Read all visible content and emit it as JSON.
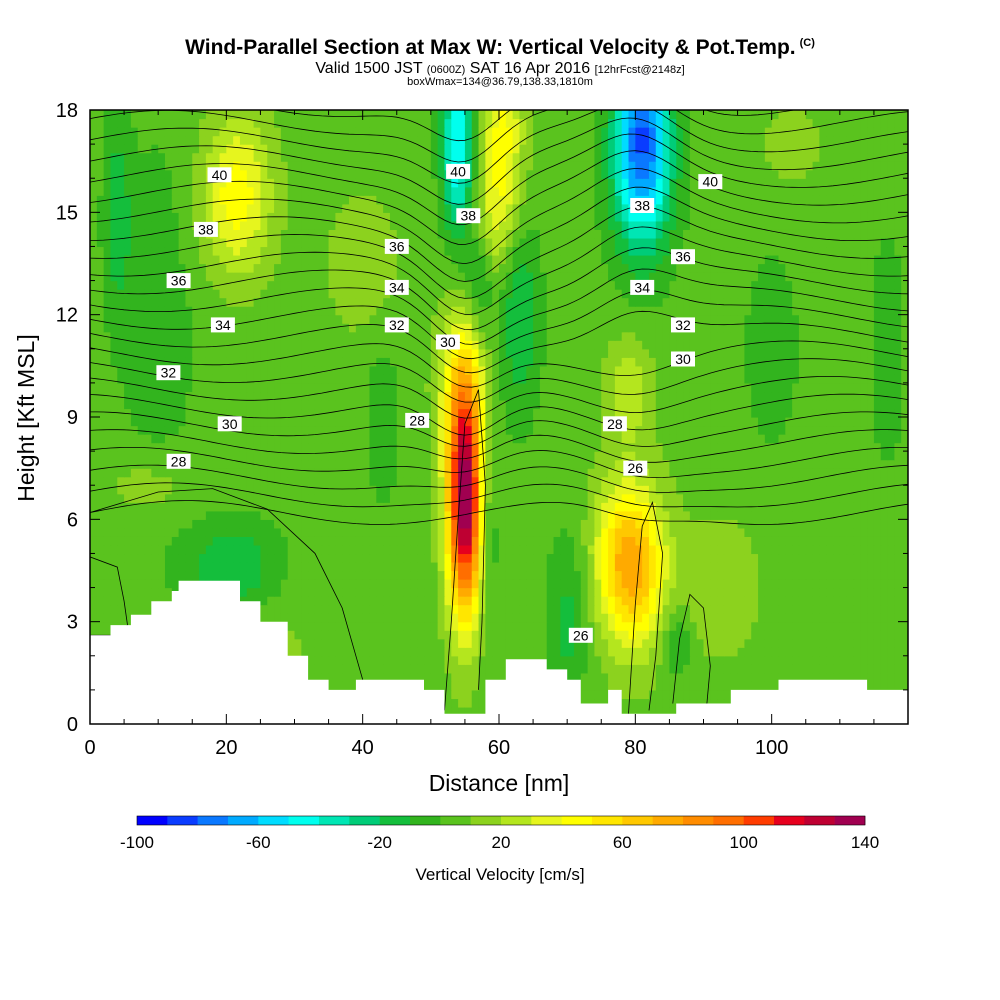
{
  "header": {
    "title": "Wind-Parallel Section at Max W: Vertical Velocity & Pot.Temp.",
    "copyright": "(C)",
    "valid_prefix": "Valid 1500 JST",
    "valid_utc": "(0600Z)",
    "valid_date": "SAT 16 Apr 2016",
    "forecast": "[12hrFcst@2148z]",
    "box_info": "boxWmax=134@36.79,138.33,1810m"
  },
  "chart_data": {
    "type": "heatmap",
    "xlabel": "Distance [nm]",
    "ylabel": "Height [Kft MSL]",
    "xlim": [
      0,
      120
    ],
    "ylim": [
      0,
      18
    ],
    "x_ticks": [
      "0",
      "20",
      "40",
      "60",
      "80",
      "100"
    ],
    "y_ticks": [
      "0",
      "3",
      "6",
      "9",
      "12",
      "15",
      "18"
    ],
    "colorbar": {
      "title": "Vertical Velocity [cm/s]",
      "range": [
        -100,
        140
      ],
      "step": 10,
      "tick_labels": [
        "-100",
        "-60",
        "-20",
        "20",
        "60",
        "100",
        "140"
      ],
      "colors": [
        "#0000ff",
        "#0a3cff",
        "#0a78ff",
        "#00aaff",
        "#00dcff",
        "#00ffee",
        "#00e6b4",
        "#00cc78",
        "#14be3c",
        "#32b41e",
        "#5ac31e",
        "#8cd21e",
        "#b4e61e",
        "#e6f51e",
        "#ffff00",
        "#ffe600",
        "#ffc800",
        "#ffaa00",
        "#ff8c00",
        "#ff6e00",
        "#ff3c00",
        "#e6001e",
        "#be0032",
        "#a00050",
        "#82006e",
        "#640096"
      ]
    },
    "vertical_velocity_features": [
      {
        "kind": "updraft",
        "x": 55,
        "y": 6.5,
        "peak": 134
      },
      {
        "kind": "updraft",
        "x": 80,
        "y": 4.5,
        "peak": 60
      },
      {
        "kind": "updraft",
        "x": 60,
        "y": 17,
        "peak": 40
      },
      {
        "kind": "updraft",
        "x": 22,
        "y": 15.5,
        "peak": 40
      },
      {
        "kind": "downdraft",
        "x": 81,
        "y": 17.5,
        "peak": -70
      },
      {
        "kind": "downdraft",
        "x": 54,
        "y": 17,
        "peak": -50
      },
      {
        "kind": "downdraft",
        "x": 20,
        "y": 4,
        "peak": -20
      }
    ],
    "theta_contour_labels": [
      {
        "label": "40",
        "x": 19,
        "y": 16.1
      },
      {
        "label": "40",
        "x": 54,
        "y": 16.2
      },
      {
        "label": "40",
        "x": 91,
        "y": 15.9
      },
      {
        "label": "38",
        "x": 17,
        "y": 14.5
      },
      {
        "label": "38",
        "x": 55.5,
        "y": 14.9
      },
      {
        "label": "38",
        "x": 81,
        "y": 15.2
      },
      {
        "label": "36",
        "x": 13,
        "y": 13.0
      },
      {
        "label": "36",
        "x": 45,
        "y": 14.0
      },
      {
        "label": "36",
        "x": 87,
        "y": 13.7
      },
      {
        "label": "34",
        "x": 19.5,
        "y": 11.7
      },
      {
        "label": "34",
        "x": 45,
        "y": 12.8
      },
      {
        "label": "34",
        "x": 81,
        "y": 12.8
      },
      {
        "label": "32",
        "x": 11.5,
        "y": 10.3
      },
      {
        "label": "32",
        "x": 45,
        "y": 11.7
      },
      {
        "label": "32",
        "x": 87,
        "y": 11.7
      },
      {
        "label": "30",
        "x": 52.5,
        "y": 11.2
      },
      {
        "label": "30",
        "x": 20.5,
        "y": 8.8
      },
      {
        "label": "30",
        "x": 87,
        "y": 10.7
      },
      {
        "label": "28",
        "x": 48,
        "y": 8.9
      },
      {
        "label": "28",
        "x": 13,
        "y": 7.7
      },
      {
        "label": "28",
        "x": 77,
        "y": 8.8
      },
      {
        "label": "26",
        "x": 80,
        "y": 7.5
      },
      {
        "label": "26",
        "x": 72,
        "y": 2.6
      }
    ],
    "terrain_height_kft": [
      [
        0,
        2.6
      ],
      [
        3,
        2.6
      ],
      [
        3,
        2.9
      ],
      [
        6,
        2.9
      ],
      [
        6,
        3.2
      ],
      [
        9,
        3.2
      ],
      [
        9,
        3.6
      ],
      [
        12,
        3.6
      ],
      [
        12,
        3.9
      ],
      [
        13,
        3.9
      ],
      [
        13,
        4.2
      ],
      [
        22,
        4.2
      ],
      [
        22,
        3.6
      ],
      [
        25,
        3.6
      ],
      [
        25,
        3.0
      ],
      [
        29,
        3.0
      ],
      [
        29,
        2.0
      ],
      [
        32,
        2.0
      ],
      [
        32,
        1.3
      ],
      [
        35,
        1.3
      ],
      [
        35,
        1.0
      ],
      [
        39,
        1.0
      ],
      [
        39,
        1.3
      ],
      [
        49,
        1.3
      ],
      [
        49,
        1.0
      ],
      [
        52,
        1.0
      ],
      [
        52,
        0.3
      ],
      [
        58,
        0.3
      ],
      [
        58,
        1.3
      ],
      [
        61,
        1.3
      ],
      [
        61,
        1.9
      ],
      [
        67,
        1.9
      ],
      [
        67,
        1.6
      ],
      [
        70,
        1.6
      ],
      [
        70,
        1.3
      ],
      [
        72,
        1.3
      ],
      [
        72,
        0.6
      ],
      [
        76,
        0.6
      ],
      [
        76,
        1.0
      ],
      [
        78,
        1.0
      ],
      [
        78,
        0.3
      ],
      [
        86,
        0.3
      ],
      [
        86,
        0.6
      ],
      [
        94,
        0.6
      ],
      [
        94,
        1.0
      ],
      [
        101,
        1.0
      ],
      [
        101,
        1.3
      ],
      [
        114,
        1.3
      ],
      [
        114,
        1.0
      ],
      [
        120,
        1.0
      ]
    ]
  }
}
